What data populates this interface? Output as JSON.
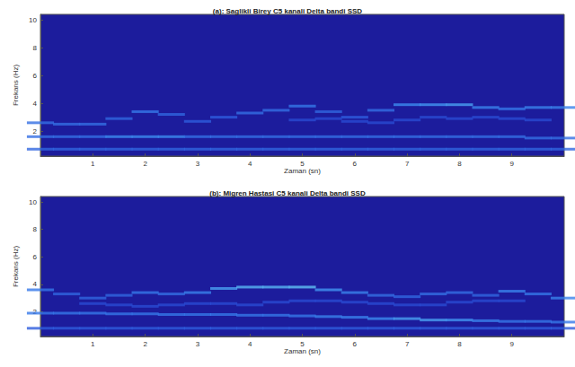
{
  "chart_data": [
    {
      "type": "heatmap",
      "title": "(a): Saglikli Birey C5 kanali Delta bandi SSD",
      "xlabel": "Zaman (sn)",
      "ylabel": "Frekans (Hz)",
      "xlim": [
        0,
        10
      ],
      "ylim": [
        0.2,
        10.4
      ],
      "xticks": [
        1,
        2,
        3,
        4,
        5,
        6,
        7,
        8,
        9
      ],
      "yticks": [
        2,
        4,
        6,
        8,
        10
      ],
      "value_range": [
        0,
        1
      ],
      "cells": [
        [
          0,
          0.7,
          0.45
        ],
        [
          0.5,
          0.7,
          0.45
        ],
        [
          1,
          0.7,
          0.45
        ],
        [
          1.5,
          0.7,
          0.45
        ],
        [
          2,
          0.7,
          0.45
        ],
        [
          2.5,
          0.7,
          0.45
        ],
        [
          3,
          0.7,
          0.45
        ],
        [
          3.5,
          0.7,
          0.45
        ],
        [
          4,
          0.7,
          0.45
        ],
        [
          4.5,
          0.7,
          0.45
        ],
        [
          5,
          0.7,
          0.45
        ],
        [
          5.5,
          0.7,
          0.45
        ],
        [
          6,
          0.7,
          0.45
        ],
        [
          6.5,
          0.7,
          0.45
        ],
        [
          7,
          0.7,
          0.45
        ],
        [
          7.5,
          0.7,
          0.45
        ],
        [
          8,
          0.7,
          0.45
        ],
        [
          8.5,
          0.7,
          0.45
        ],
        [
          9,
          0.7,
          0.45
        ],
        [
          9.5,
          0.7,
          0.45
        ],
        [
          10,
          0.7,
          0.45
        ],
        [
          0,
          1.6,
          0.5
        ],
        [
          0.5,
          1.6,
          0.5
        ],
        [
          1,
          1.6,
          0.5
        ],
        [
          1.5,
          1.6,
          0.65
        ],
        [
          2,
          1.6,
          0.65
        ],
        [
          2.5,
          1.6,
          0.65
        ],
        [
          3,
          1.6,
          0.5
        ],
        [
          3.5,
          1.6,
          0.5
        ],
        [
          4,
          1.6,
          0.5
        ],
        [
          4.5,
          1.6,
          0.5
        ],
        [
          5,
          1.6,
          0.5
        ],
        [
          5.5,
          1.6,
          0.5
        ],
        [
          6,
          1.6,
          0.5
        ],
        [
          6.5,
          1.6,
          0.5
        ],
        [
          7,
          1.6,
          0.5
        ],
        [
          7.5,
          1.6,
          0.5
        ],
        [
          8,
          1.6,
          0.5
        ],
        [
          8.5,
          1.6,
          0.5
        ],
        [
          9,
          1.6,
          0.5
        ],
        [
          9.5,
          1.5,
          0.5
        ],
        [
          10,
          1.5,
          0.5
        ],
        [
          0,
          2.6,
          0.5
        ],
        [
          0.5,
          2.5,
          0.5
        ],
        [
          1,
          2.5,
          0.5
        ],
        [
          1.5,
          2.9,
          0.45
        ],
        [
          2,
          3.4,
          0.55
        ],
        [
          2.5,
          3.2,
          0.45
        ],
        [
          3,
          2.7,
          0.4
        ],
        [
          3.5,
          3.0,
          0.4
        ],
        [
          4,
          3.3,
          0.5
        ],
        [
          4.5,
          3.5,
          0.5
        ],
        [
          5,
          3.8,
          0.55
        ],
        [
          5.5,
          3.4,
          0.45
        ],
        [
          6,
          3.0,
          0.4
        ],
        [
          6.5,
          3.5,
          0.5
        ],
        [
          7,
          3.9,
          0.65
        ],
        [
          7.5,
          3.9,
          0.7
        ],
        [
          8,
          3.9,
          0.75
        ],
        [
          8.5,
          3.7,
          0.6
        ],
        [
          9,
          3.6,
          0.55
        ],
        [
          9.5,
          3.7,
          0.6
        ],
        [
          10,
          3.7,
          0.6
        ],
        [
          5,
          2.8,
          0.3
        ],
        [
          5.5,
          2.9,
          0.3
        ],
        [
          6,
          2.7,
          0.3
        ],
        [
          6.5,
          2.6,
          0.3
        ],
        [
          7,
          2.8,
          0.3
        ],
        [
          7.5,
          3.0,
          0.3
        ],
        [
          8,
          2.9,
          0.3
        ],
        [
          8.5,
          3.0,
          0.3
        ],
        [
          9,
          2.9,
          0.3
        ],
        [
          9.5,
          2.8,
          0.3
        ]
      ]
    },
    {
      "type": "heatmap",
      "title": "(b): Migren Hastasi C5 kanali Delta bandi SSD",
      "xlabel": "Zaman (sn)",
      "ylabel": "Frekans (Hz)",
      "xlim": [
        0,
        10
      ],
      "ylim": [
        0.2,
        10.4
      ],
      "xticks": [
        1,
        2,
        3,
        4,
        5,
        6,
        7,
        8,
        9
      ],
      "yticks": [
        2,
        4,
        6,
        8,
        10
      ],
      "value_range": [
        0,
        1
      ],
      "cells": [
        [
          0,
          0.8,
          0.4
        ],
        [
          0.5,
          0.8,
          0.4
        ],
        [
          1,
          0.8,
          0.4
        ],
        [
          1.5,
          0.8,
          0.4
        ],
        [
          2,
          0.8,
          0.4
        ],
        [
          2.5,
          0.8,
          0.4
        ],
        [
          3,
          0.8,
          0.4
        ],
        [
          3.5,
          0.8,
          0.4
        ],
        [
          4,
          0.8,
          0.4
        ],
        [
          4.5,
          0.8,
          0.4
        ],
        [
          5,
          0.8,
          0.4
        ],
        [
          5.5,
          0.8,
          0.4
        ],
        [
          6,
          0.8,
          0.4
        ],
        [
          6.5,
          0.8,
          0.4
        ],
        [
          7,
          0.8,
          0.4
        ],
        [
          7.5,
          0.8,
          0.4
        ],
        [
          8,
          0.8,
          0.4
        ],
        [
          8.5,
          0.8,
          0.4
        ],
        [
          9,
          0.8,
          0.4
        ],
        [
          9.5,
          0.8,
          0.4
        ],
        [
          10,
          0.8,
          0.4
        ],
        [
          0,
          1.9,
          0.55
        ],
        [
          0.5,
          1.9,
          0.55
        ],
        [
          1,
          1.9,
          0.55
        ],
        [
          1.5,
          1.85,
          0.55
        ],
        [
          2,
          1.85,
          0.55
        ],
        [
          2.5,
          1.8,
          0.55
        ],
        [
          3,
          1.8,
          0.55
        ],
        [
          3.5,
          1.8,
          0.55
        ],
        [
          4,
          1.75,
          0.55
        ],
        [
          4.5,
          1.75,
          0.55
        ],
        [
          5,
          1.7,
          0.55
        ],
        [
          5.5,
          1.65,
          0.6
        ],
        [
          6,
          1.6,
          0.6
        ],
        [
          6.5,
          1.5,
          0.65
        ],
        [
          7,
          1.5,
          0.75
        ],
        [
          7.5,
          1.4,
          0.75
        ],
        [
          8,
          1.4,
          0.7
        ],
        [
          8.5,
          1.35,
          0.6
        ],
        [
          9,
          1.3,
          0.55
        ],
        [
          9.5,
          1.3,
          0.55
        ],
        [
          10,
          1.25,
          0.55
        ],
        [
          0,
          3.6,
          0.55
        ],
        [
          0.5,
          3.3,
          0.45
        ],
        [
          1,
          3.0,
          0.45
        ],
        [
          1.5,
          3.2,
          0.45
        ],
        [
          2,
          3.4,
          0.55
        ],
        [
          2.5,
          3.3,
          0.5
        ],
        [
          3,
          3.4,
          0.6
        ],
        [
          3.5,
          3.7,
          0.75
        ],
        [
          4,
          3.8,
          0.85
        ],
        [
          4.5,
          3.8,
          0.85
        ],
        [
          5,
          3.8,
          0.9
        ],
        [
          5.5,
          3.6,
          0.7
        ],
        [
          6,
          3.4,
          0.6
        ],
        [
          6.5,
          3.2,
          0.5
        ],
        [
          7,
          3.1,
          0.45
        ],
        [
          7.5,
          3.3,
          0.5
        ],
        [
          8,
          3.4,
          0.5
        ],
        [
          8.5,
          3.2,
          0.45
        ],
        [
          9,
          3.5,
          0.6
        ],
        [
          9.5,
          3.3,
          0.55
        ],
        [
          10,
          3.0,
          0.6
        ],
        [
          1,
          2.6,
          0.3
        ],
        [
          1.5,
          2.5,
          0.3
        ],
        [
          2,
          2.4,
          0.3
        ],
        [
          2.5,
          2.5,
          0.3
        ],
        [
          3,
          2.6,
          0.3
        ],
        [
          3.5,
          2.6,
          0.3
        ],
        [
          4,
          2.5,
          0.3
        ],
        [
          4.5,
          2.7,
          0.3
        ],
        [
          5,
          2.8,
          0.3
        ],
        [
          5.5,
          2.8,
          0.3
        ],
        [
          6,
          2.7,
          0.3
        ],
        [
          6.5,
          2.6,
          0.3
        ],
        [
          7,
          2.5,
          0.3
        ],
        [
          7.5,
          2.5,
          0.3
        ],
        [
          8,
          2.7,
          0.3
        ],
        [
          8.5,
          2.8,
          0.3
        ],
        [
          9,
          2.8,
          0.3
        ]
      ]
    }
  ]
}
